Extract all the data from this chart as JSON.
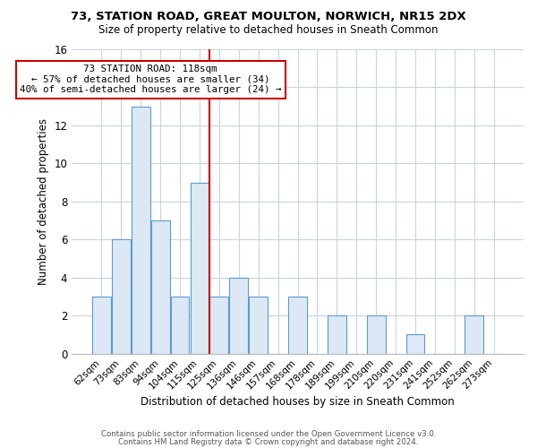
{
  "title1": "73, STATION ROAD, GREAT MOULTON, NORWICH, NR15 2DX",
  "title2": "Size of property relative to detached houses in Sneath Common",
  "xlabel": "Distribution of detached houses by size in Sneath Common",
  "ylabel": "Number of detached properties",
  "footer1": "Contains HM Land Registry data © Crown copyright and database right 2024.",
  "footer2": "Contains public sector information licensed under the Open Government Licence v3.0.",
  "annotation_line1": "73 STATION ROAD: 118sqm",
  "annotation_line2": "← 57% of detached houses are smaller (34)",
  "annotation_line3": "40% of semi-detached houses are larger (24) →",
  "bar_labels": [
    "62sqm",
    "73sqm",
    "83sqm",
    "94sqm",
    "104sqm",
    "115sqm",
    "125sqm",
    "136sqm",
    "146sqm",
    "157sqm",
    "168sqm",
    "178sqm",
    "189sqm",
    "199sqm",
    "210sqm",
    "220sqm",
    "231sqm",
    "241sqm",
    "252sqm",
    "262sqm",
    "273sqm"
  ],
  "bar_values": [
    3,
    6,
    13,
    7,
    3,
    9,
    3,
    4,
    3,
    0,
    3,
    0,
    2,
    0,
    2,
    0,
    1,
    0,
    0,
    2,
    0
  ],
  "bar_color": "#dce9f5",
  "bar_edge_color": "#5b9bd5",
  "reference_line_x": 5.5,
  "reference_line_color": "#cc0000",
  "ylim": [
    0,
    16
  ],
  "yticks": [
    0,
    2,
    4,
    6,
    8,
    10,
    12,
    14,
    16
  ],
  "background_color": "#ffffff",
  "grid_color": "#c8d4e0"
}
